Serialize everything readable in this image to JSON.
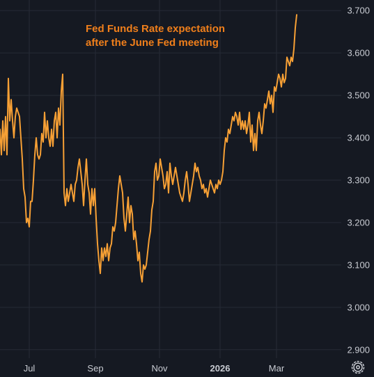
{
  "chart_data": {
    "type": "line",
    "title_lines": [
      "Fed Funds Rate expectation",
      "after the June Fed meeting"
    ],
    "xlabel": "",
    "ylabel": "",
    "ylim": [
      2.88,
      3.725
    ],
    "y_ticks": [
      "3.700",
      "3.600",
      "3.500",
      "3.400",
      "3.300",
      "3.200",
      "3.100",
      "3.000",
      "2.900"
    ],
    "x_ticks": [
      {
        "label": "Jul",
        "t": 42
      },
      {
        "label": "Sep",
        "t": 137
      },
      {
        "label": "Nov",
        "t": 229
      },
      {
        "label": "2026",
        "t": 316
      },
      {
        "label": "Mar",
        "t": 397
      }
    ],
    "xlim": [
      0,
      490
    ],
    "grid": true,
    "series": [
      {
        "color": "#f7a035",
        "points": [
          [
            0,
            3.42
          ],
          [
            2,
            3.36
          ],
          [
            4,
            3.44
          ],
          [
            6,
            3.37
          ],
          [
            8,
            3.45
          ],
          [
            10,
            3.36
          ],
          [
            12,
            3.54
          ],
          [
            14,
            3.44
          ],
          [
            16,
            3.49
          ],
          [
            18,
            3.44
          ],
          [
            20,
            3.4
          ],
          [
            22,
            3.45
          ],
          [
            24,
            3.47
          ],
          [
            26,
            3.46
          ],
          [
            28,
            3.45
          ],
          [
            30,
            3.4
          ],
          [
            32,
            3.35
          ],
          [
            34,
            3.28
          ],
          [
            36,
            3.26
          ],
          [
            38,
            3.2
          ],
          [
            40,
            3.21
          ],
          [
            42,
            3.19
          ],
          [
            44,
            3.25
          ],
          [
            46,
            3.25
          ],
          [
            48,
            3.3
          ],
          [
            50,
            3.36
          ],
          [
            52,
            3.4
          ],
          [
            54,
            3.36
          ],
          [
            56,
            3.35
          ],
          [
            58,
            3.36
          ],
          [
            60,
            3.41
          ],
          [
            62,
            3.39
          ],
          [
            64,
            3.46
          ],
          [
            66,
            3.4
          ],
          [
            68,
            3.44
          ],
          [
            70,
            3.4
          ],
          [
            72,
            3.38
          ],
          [
            74,
            3.42
          ],
          [
            76,
            3.38
          ],
          [
            78,
            3.44
          ],
          [
            80,
            3.46
          ],
          [
            82,
            3.4
          ],
          [
            84,
            3.47
          ],
          [
            86,
            3.43
          ],
          [
            88,
            3.51
          ],
          [
            90,
            3.55
          ],
          [
            92,
            3.27
          ],
          [
            94,
            3.24
          ],
          [
            96,
            3.28
          ],
          [
            98,
            3.25
          ],
          [
            100,
            3.27
          ],
          [
            102,
            3.29
          ],
          [
            104,
            3.27
          ],
          [
            106,
            3.25
          ],
          [
            108,
            3.29
          ],
          [
            110,
            3.3
          ],
          [
            112,
            3.33
          ],
          [
            114,
            3.35
          ],
          [
            116,
            3.32
          ],
          [
            118,
            3.29
          ],
          [
            120,
            3.24
          ],
          [
            122,
            3.3
          ],
          [
            124,
            3.35
          ],
          [
            126,
            3.29
          ],
          [
            128,
            3.27
          ],
          [
            130,
            3.22
          ],
          [
            132,
            3.28
          ],
          [
            134,
            3.24
          ],
          [
            136,
            3.28
          ],
          [
            138,
            3.21
          ],
          [
            140,
            3.15
          ],
          [
            142,
            3.11
          ],
          [
            144,
            3.08
          ],
          [
            146,
            3.14
          ],
          [
            148,
            3.11
          ],
          [
            150,
            3.14
          ],
          [
            152,
            3.12
          ],
          [
            154,
            3.15
          ],
          [
            156,
            3.11
          ],
          [
            158,
            3.14
          ],
          [
            160,
            3.15
          ],
          [
            162,
            3.19
          ],
          [
            164,
            3.18
          ],
          [
            166,
            3.2
          ],
          [
            168,
            3.24
          ],
          [
            170,
            3.28
          ],
          [
            172,
            3.31
          ],
          [
            174,
            3.29
          ],
          [
            176,
            3.27
          ],
          [
            178,
            3.21
          ],
          [
            180,
            3.18
          ],
          [
            182,
            3.22
          ],
          [
            184,
            3.26
          ],
          [
            186,
            3.2
          ],
          [
            188,
            3.24
          ],
          [
            190,
            3.22
          ],
          [
            192,
            3.16
          ],
          [
            194,
            3.18
          ],
          [
            196,
            3.15
          ],
          [
            198,
            3.11
          ],
          [
            200,
            3.13
          ],
          [
            202,
            3.08
          ],
          [
            204,
            3.06
          ],
          [
            206,
            3.1
          ],
          [
            208,
            3.09
          ],
          [
            210,
            3.1
          ],
          [
            212,
            3.13
          ],
          [
            214,
            3.16
          ],
          [
            216,
            3.18
          ],
          [
            218,
            3.23
          ],
          [
            220,
            3.25
          ],
          [
            222,
            3.32
          ],
          [
            224,
            3.34
          ],
          [
            226,
            3.3
          ],
          [
            228,
            3.31
          ],
          [
            230,
            3.35
          ],
          [
            232,
            3.33
          ],
          [
            234,
            3.31
          ],
          [
            236,
            3.28
          ],
          [
            238,
            3.29
          ],
          [
            240,
            3.32
          ],
          [
            242,
            3.27
          ],
          [
            244,
            3.34
          ],
          [
            246,
            3.31
          ],
          [
            248,
            3.29
          ],
          [
            250,
            3.31
          ],
          [
            252,
            3.33
          ],
          [
            254,
            3.31
          ],
          [
            256,
            3.29
          ],
          [
            258,
            3.27
          ],
          [
            260,
            3.26
          ],
          [
            262,
            3.25
          ],
          [
            264,
            3.27
          ],
          [
            266,
            3.3
          ],
          [
            268,
            3.32
          ],
          [
            270,
            3.29
          ],
          [
            272,
            3.25
          ],
          [
            274,
            3.27
          ],
          [
            276,
            3.29
          ],
          [
            278,
            3.31
          ],
          [
            280,
            3.34
          ],
          [
            282,
            3.32
          ],
          [
            284,
            3.33
          ],
          [
            286,
            3.31
          ],
          [
            288,
            3.3
          ],
          [
            290,
            3.28
          ],
          [
            292,
            3.29
          ],
          [
            294,
            3.27
          ],
          [
            296,
            3.28
          ],
          [
            298,
            3.26
          ],
          [
            300,
            3.28
          ],
          [
            302,
            3.3
          ],
          [
            304,
            3.29
          ],
          [
            306,
            3.28
          ],
          [
            308,
            3.27
          ],
          [
            310,
            3.29
          ],
          [
            312,
            3.28
          ],
          [
            314,
            3.3
          ],
          [
            316,
            3.29
          ],
          [
            318,
            3.3
          ],
          [
            320,
            3.32
          ],
          [
            322,
            3.37
          ],
          [
            324,
            3.4
          ],
          [
            326,
            3.39
          ],
          [
            328,
            3.42
          ],
          [
            330,
            3.41
          ],
          [
            332,
            3.43
          ],
          [
            334,
            3.45
          ],
          [
            336,
            3.44
          ],
          [
            338,
            3.46
          ],
          [
            340,
            3.45
          ],
          [
            342,
            3.43
          ],
          [
            344,
            3.46
          ],
          [
            346,
            3.42
          ],
          [
            348,
            3.44
          ],
          [
            350,
            3.42
          ],
          [
            352,
            3.44
          ],
          [
            354,
            3.41
          ],
          [
            356,
            3.43
          ],
          [
            358,
            3.46
          ],
          [
            360,
            3.39
          ],
          [
            362,
            3.43
          ],
          [
            364,
            3.37
          ],
          [
            366,
            3.41
          ],
          [
            368,
            3.37
          ],
          [
            370,
            3.44
          ],
          [
            372,
            3.46
          ],
          [
            374,
            3.43
          ],
          [
            376,
            3.41
          ],
          [
            378,
            3.44
          ],
          [
            380,
            3.48
          ],
          [
            382,
            3.47
          ],
          [
            384,
            3.49
          ],
          [
            386,
            3.51
          ],
          [
            388,
            3.48
          ],
          [
            390,
            3.5
          ],
          [
            392,
            3.46
          ],
          [
            394,
            3.52
          ],
          [
            396,
            3.51
          ],
          [
            398,
            3.53
          ],
          [
            400,
            3.55
          ],
          [
            402,
            3.54
          ],
          [
            404,
            3.52
          ],
          [
            406,
            3.55
          ],
          [
            408,
            3.53
          ],
          [
            410,
            3.54
          ],
          [
            412,
            3.59
          ],
          [
            414,
            3.58
          ],
          [
            416,
            3.57
          ],
          [
            418,
            3.59
          ],
          [
            420,
            3.58
          ],
          [
            422,
            3.61
          ],
          [
            424,
            3.66
          ],
          [
            426,
            3.69
          ]
        ]
      }
    ]
  },
  "colors": {
    "background": "#151922",
    "grid": "#262b36",
    "tick_text": "#c9ccd3",
    "line": "#f7a035",
    "title": "#f07f1b"
  },
  "icons": {
    "settings": "gear-icon"
  }
}
